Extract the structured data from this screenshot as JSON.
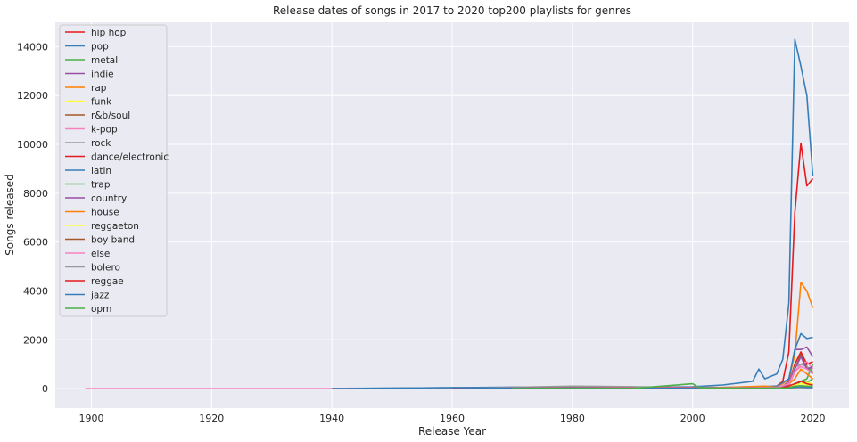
{
  "chart_data": {
    "type": "line",
    "title": "Release dates of songs in 2017 to 2020 top200 playlists for genres",
    "xlabel": "Release Year",
    "ylabel": "Songs released",
    "xlim": [
      1894,
      2026
    ],
    "ylim": [
      -800,
      15000
    ],
    "xticks": [
      1900,
      1920,
      1940,
      1960,
      1980,
      2000,
      2020
    ],
    "yticks": [
      0,
      2000,
      4000,
      6000,
      8000,
      10000,
      12000,
      14000
    ],
    "grid": true,
    "legend_position": "top-left",
    "series": [
      {
        "name": "hip hop",
        "color": "#e41a1c",
        "x": [
          1940,
          1960,
          1980,
          2000,
          2010,
          2014,
          2015,
          2016,
          2017,
          2018,
          2019,
          2020
        ],
        "y": [
          0,
          0,
          0,
          0,
          10,
          30,
          80,
          200,
          1000,
          1500,
          1000,
          1100
        ]
      },
      {
        "name": "pop",
        "color": "#377eb8",
        "x": [
          1940,
          1950,
          1960,
          1970,
          1980,
          1990,
          2000,
          2005,
          2010,
          2011,
          2012,
          2013,
          2014,
          2015,
          2016,
          2017,
          2018,
          2019,
          2020
        ],
        "y": [
          10,
          20,
          40,
          60,
          60,
          50,
          80,
          150,
          300,
          800,
          400,
          500,
          600,
          1200,
          3500,
          14300,
          13200,
          12000,
          8700
        ]
      },
      {
        "name": "metal",
        "color": "#4daf4a",
        "x": [
          1960,
          1980,
          2000,
          2014,
          2016,
          2017,
          2018,
          2019,
          2020
        ],
        "y": [
          0,
          5,
          10,
          20,
          40,
          200,
          300,
          250,
          400
        ]
      },
      {
        "name": "indie",
        "color": "#984ea3",
        "x": [
          1960,
          1980,
          2000,
          2014,
          2015,
          2016,
          2017,
          2018,
          2019,
          2020
        ],
        "y": [
          0,
          5,
          10,
          40,
          100,
          300,
          1600,
          1600,
          1700,
          1300
        ]
      },
      {
        "name": "rap",
        "color": "#ff7f00",
        "x": [
          1940,
          1960,
          1980,
          2000,
          2012,
          2014,
          2015,
          2016,
          2017,
          2018,
          2019,
          2020
        ],
        "y": [
          0,
          0,
          0,
          10,
          30,
          100,
          200,
          400,
          1400,
          4350,
          4000,
          3300
        ]
      },
      {
        "name": "funk",
        "color": "#ffff33",
        "x": [
          1960,
          1980,
          2000,
          2016,
          2017,
          2018,
          2019,
          2020
        ],
        "y": [
          0,
          5,
          10,
          30,
          150,
          200,
          150,
          200
        ]
      },
      {
        "name": "r&b/soul",
        "color": "#a65628",
        "x": [
          1950,
          1970,
          1990,
          2010,
          2015,
          2016,
          2017,
          2018,
          2019,
          2020
        ],
        "y": [
          0,
          20,
          20,
          20,
          60,
          200,
          800,
          1400,
          900,
          600
        ]
      },
      {
        "name": "k-pop",
        "color": "#f781bf",
        "x": [
          1899,
          1938,
          1980,
          2000,
          2014,
          2016,
          2017,
          2018,
          2019,
          2020
        ],
        "y": [
          0,
          0,
          0,
          0,
          20,
          100,
          700,
          1000,
          1100,
          800
        ]
      },
      {
        "name": "rock",
        "color": "#999999",
        "x": [
          1950,
          1960,
          1970,
          1975,
          1980,
          1985,
          1990,
          1995,
          2000,
          2010,
          2015,
          2016,
          2017,
          2018,
          2019,
          2020
        ],
        "y": [
          0,
          20,
          50,
          80,
          100,
          90,
          80,
          60,
          60,
          40,
          60,
          200,
          900,
          1000,
          900,
          700
        ]
      },
      {
        "name": "dance/electronic",
        "color": "#e41a1c",
        "x": [
          1960,
          1980,
          2000,
          2010,
          2014,
          2015,
          2016,
          2017,
          2018,
          2019,
          2020
        ],
        "y": [
          0,
          5,
          20,
          40,
          100,
          300,
          1500,
          7200,
          10050,
          8300,
          8600
        ]
      },
      {
        "name": "latin",
        "color": "#377eb8",
        "x": [
          1960,
          1980,
          2000,
          2014,
          2016,
          2017,
          2018,
          2019,
          2020
        ],
        "y": [
          0,
          10,
          20,
          100,
          400,
          1600,
          2250,
          2050,
          2100
        ]
      },
      {
        "name": "trap",
        "color": "#4daf4a",
        "x": [
          1980,
          2000,
          2014,
          2016,
          2017,
          2018,
          2019,
          2020
        ],
        "y": [
          0,
          0,
          10,
          30,
          100,
          300,
          400,
          1000
        ]
      },
      {
        "name": "country",
        "color": "#984ea3",
        "x": [
          1950,
          1970,
          1990,
          2000,
          2010,
          2015,
          2016,
          2017,
          2018,
          2019,
          2020
        ],
        "y": [
          0,
          10,
          30,
          40,
          30,
          80,
          200,
          800,
          1300,
          800,
          900
        ]
      },
      {
        "name": "house",
        "color": "#ff7f00",
        "x": [
          1980,
          2000,
          2012,
          2014,
          2016,
          2017,
          2018,
          2019,
          2020
        ],
        "y": [
          0,
          10,
          100,
          50,
          200,
          400,
          800,
          600,
          400
        ]
      },
      {
        "name": "reggaeton",
        "color": "#ffff33",
        "x": [
          1990,
          2000,
          2010,
          2016,
          2017,
          2018,
          2019,
          2020
        ],
        "y": [
          0,
          10,
          20,
          50,
          150,
          200,
          250,
          200
        ]
      },
      {
        "name": "boy band",
        "color": "#a65628",
        "x": [
          1990,
          2000,
          2010,
          2016,
          2017,
          2018,
          2019,
          2020
        ],
        "y": [
          0,
          10,
          20,
          50,
          100,
          80,
          60,
          50
        ]
      },
      {
        "name": "else",
        "color": "#f781bf",
        "x": [
          1940,
          1960,
          1980,
          2000,
          2014,
          2016,
          2017,
          2018,
          2019,
          2020
        ],
        "y": [
          0,
          10,
          20,
          30,
          50,
          200,
          700,
          900,
          800,
          600
        ]
      },
      {
        "name": "bolero",
        "color": "#999999",
        "x": [
          1950,
          1960,
          1970,
          1980,
          1990,
          2000,
          2010,
          2020
        ],
        "y": [
          0,
          10,
          20,
          10,
          10,
          5,
          5,
          10
        ]
      },
      {
        "name": "reggae",
        "color": "#e41a1c",
        "x": [
          1960,
          1970,
          1980,
          2000,
          2015,
          2017,
          2018,
          2019,
          2020
        ],
        "y": [
          0,
          20,
          20,
          20,
          30,
          200,
          300,
          200,
          150
        ]
      },
      {
        "name": "jazz",
        "color": "#377eb8",
        "x": [
          1940,
          1950,
          1960,
          1970,
          1980,
          2000,
          2016,
          2017,
          2018,
          2019,
          2020
        ],
        "y": [
          0,
          20,
          40,
          20,
          10,
          10,
          20,
          60,
          80,
          50,
          40
        ]
      },
      {
        "name": "opm",
        "color": "#4daf4a",
        "x": [
          1970,
          1990,
          2000,
          2001,
          2002,
          2010,
          2016,
          2017,
          2018,
          2019,
          2020
        ],
        "y": [
          0,
          10,
          200,
          50,
          30,
          20,
          30,
          100,
          120,
          100,
          100
        ]
      }
    ]
  }
}
